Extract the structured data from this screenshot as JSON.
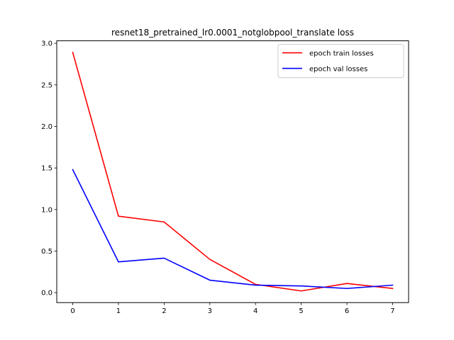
{
  "colors": {
    "train": "#ff0000",
    "val": "#0000ff"
  },
  "chart_data": {
    "type": "line",
    "title": "resnet18_pretrained_lr0.0001_notglobpool_translate loss",
    "xlabel": "",
    "ylabel": "",
    "x": [
      0,
      1,
      2,
      3,
      4,
      5,
      6,
      7
    ],
    "xlim": [
      -0.35,
      7.35
    ],
    "ylim": [
      -0.12,
      3.03
    ],
    "xticks": [
      0,
      1,
      2,
      3,
      4,
      5,
      6,
      7
    ],
    "xtick_labels": [
      "0",
      "1",
      "2",
      "3",
      "4",
      "5",
      "6",
      "7"
    ],
    "yticks": [
      0.0,
      0.5,
      1.0,
      1.5,
      2.0,
      2.5,
      3.0
    ],
    "ytick_labels": [
      "0.0",
      "0.5",
      "1.0",
      "1.5",
      "2.0",
      "2.5",
      "3.0"
    ],
    "grid": false,
    "legend_position": "top-right",
    "series": [
      {
        "name": "epoch train losses",
        "color_key": "train",
        "values": [
          2.89,
          0.92,
          0.85,
          0.4,
          0.1,
          0.02,
          0.11,
          0.05
        ]
      },
      {
        "name": "epoch val losses",
        "color_key": "val",
        "values": [
          1.48,
          0.37,
          0.415,
          0.15,
          0.09,
          0.08,
          0.05,
          0.09
        ]
      }
    ]
  }
}
